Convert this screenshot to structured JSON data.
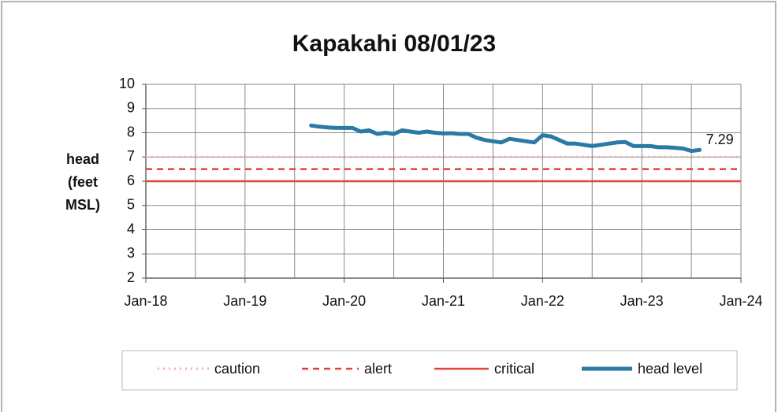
{
  "chart_data": {
    "type": "line",
    "title": "Kapakahi 08/01/23",
    "ylabel": [
      "head",
      "(feet",
      "MSL)"
    ],
    "xlim": [
      "2018-01",
      "2024-01"
    ],
    "xticks": [
      {
        "value": "2018-01",
        "label": "Jan-18"
      },
      {
        "value": "2019-01",
        "label": "Jan-19"
      },
      {
        "value": "2020-01",
        "label": "Jan-20"
      },
      {
        "value": "2021-01",
        "label": "Jan-21"
      },
      {
        "value": "2022-01",
        "label": "Jan-22"
      },
      {
        "value": "2023-01",
        "label": "Jan-23"
      },
      {
        "value": "2024-01",
        "label": "Jan-24"
      }
    ],
    "xminor": [
      "2018-07",
      "2019-07",
      "2020-07",
      "2021-07",
      "2022-07",
      "2023-07"
    ],
    "ylim": [
      2,
      10
    ],
    "yticks": [
      2,
      3,
      4,
      5,
      6,
      7,
      8,
      9,
      10
    ],
    "grid": true,
    "legend": "bottom",
    "series": [
      {
        "name": "caution",
        "color": "#f2b3ab",
        "style": "dotted",
        "x": [
          "2018-01",
          "2024-01"
        ],
        "values": [
          7,
          7
        ]
      },
      {
        "name": "alert",
        "color": "#e0443a",
        "style": "dashed",
        "x": [
          "2018-01",
          "2024-01"
        ],
        "values": [
          6.5,
          6.5
        ]
      },
      {
        "name": "critical",
        "color": "#e0443a",
        "style": "solid",
        "x": [
          "2018-01",
          "2024-01"
        ],
        "values": [
          6,
          6
        ]
      },
      {
        "name": "head level",
        "color": "#2b7aa5",
        "style": "thick",
        "x": [
          "2019-09",
          "2019-10",
          "2019-11",
          "2019-12",
          "2020-01",
          "2020-02",
          "2020-03",
          "2020-04",
          "2020-05",
          "2020-06",
          "2020-07",
          "2020-08",
          "2020-09",
          "2020-10",
          "2020-11",
          "2020-12",
          "2021-01",
          "2021-02",
          "2021-03",
          "2021-04",
          "2021-05",
          "2021-06",
          "2021-07",
          "2021-08",
          "2021-09",
          "2021-10",
          "2021-11",
          "2021-12",
          "2022-01",
          "2022-02",
          "2022-03",
          "2022-04",
          "2022-05",
          "2022-06",
          "2022-07",
          "2022-08",
          "2022-09",
          "2022-10",
          "2022-11",
          "2022-12",
          "2023-01",
          "2023-02",
          "2023-03",
          "2023-04",
          "2023-05",
          "2023-06",
          "2023-07",
          "2023-08"
        ],
        "values": [
          8.3,
          8.25,
          8.22,
          8.2,
          8.2,
          8.2,
          8.05,
          8.1,
          7.95,
          8.0,
          7.95,
          8.1,
          8.05,
          8.0,
          8.05,
          8.0,
          7.97,
          7.98,
          7.95,
          7.95,
          7.8,
          7.7,
          7.65,
          7.6,
          7.75,
          7.7,
          7.65,
          7.6,
          7.9,
          7.85,
          7.7,
          7.55,
          7.55,
          7.5,
          7.45,
          7.5,
          7.55,
          7.6,
          7.62,
          7.45,
          7.45,
          7.45,
          7.4,
          7.4,
          7.38,
          7.35,
          7.25,
          7.29
        ]
      }
    ]
  }
}
